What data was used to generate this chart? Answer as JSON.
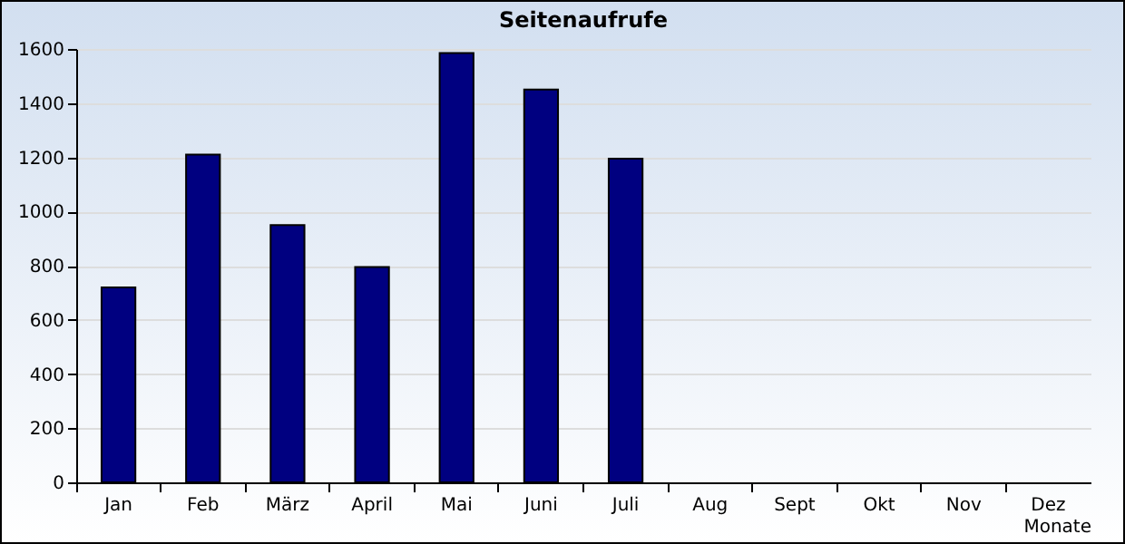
{
  "chart_data": {
    "type": "bar",
    "title": "Seitenaufrufe",
    "xlabel": "Monate",
    "categories": [
      "Jan",
      "Feb",
      "März",
      "April",
      "Mai",
      "Juni",
      "Juli",
      "Aug",
      "Sept",
      "Okt",
      "Nov",
      "Dez"
    ],
    "values": [
      720,
      1210,
      950,
      795,
      1585,
      1450,
      1195,
      null,
      null,
      null,
      null,
      null
    ],
    "color": "#000080",
    "ylim": [
      0,
      1600
    ],
    "yticks": [
      0,
      200,
      400,
      600,
      800,
      1000,
      1200,
      1400,
      1600
    ],
    "grid": "y"
  }
}
